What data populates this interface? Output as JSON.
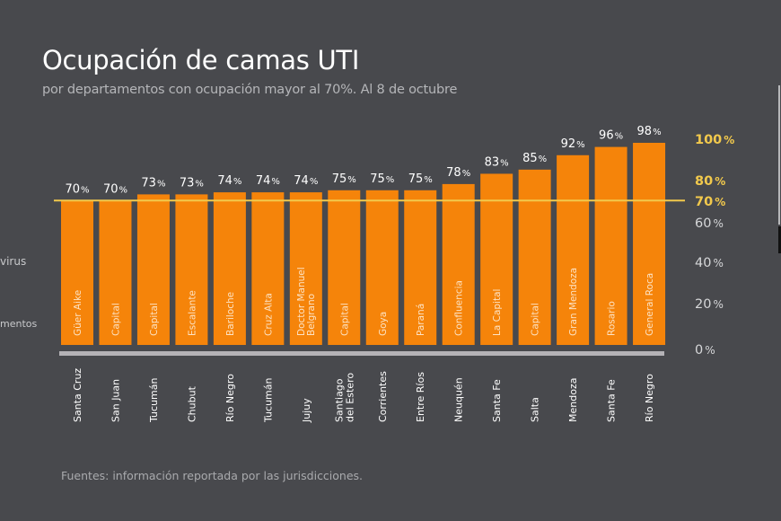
{
  "header": {
    "title": "Ocupación de camas UTI",
    "subtitle": "por departamentos con ocupación mayor al 70%. Al 8 de octubre"
  },
  "footer": {
    "source": "Fuentes: información reportada por las jurisdicciones."
  },
  "left_edge_fragments": [
    "virus",
    "mentos"
  ],
  "colors": {
    "background": "#48494d",
    "bar": "#f5840a",
    "threshold_line": "#f2c94c",
    "axis_highlight": "#f2c94c",
    "axis_normal": "#d6d7d9",
    "value_label": "#ffffff",
    "baseline": "#b4b2b6"
  },
  "chart_data": {
    "type": "bar",
    "title": "Ocupación de camas UTI",
    "subtitle": "por departamentos con ocupación mayor al 70%. Al 8 de octubre",
    "xlabel": "",
    "ylabel": "",
    "ylim": [
      0,
      100
    ],
    "grid": false,
    "legend": "none",
    "y_axis_position": "right",
    "value_suffix": "%",
    "categories": [
      {
        "department": "Güer Aike",
        "province": "Santa Cruz"
      },
      {
        "department": "Capital",
        "province": "San Juan"
      },
      {
        "department": "Capital",
        "province": "Tucumán"
      },
      {
        "department": "Escalante",
        "province": "Chubut"
      },
      {
        "department": "Bariloche",
        "province": "Río Negro"
      },
      {
        "department": "Cruz Alta",
        "province": "Tucumán"
      },
      {
        "department": "Doctor Manuel|Belgrano",
        "province": "Jujuy"
      },
      {
        "department": "Capital",
        "province": "Santiago|del Estero"
      },
      {
        "department": "Goya",
        "province": "Corrientes"
      },
      {
        "department": "Paraná",
        "province": "Entre Ríos"
      },
      {
        "department": "Confluencia",
        "province": "Neuquén"
      },
      {
        "department": "La Capital",
        "province": "Santa Fe"
      },
      {
        "department": "Capital",
        "province": "Salta"
      },
      {
        "department": "Gran Mendoza",
        "province": "Mendoza"
      },
      {
        "department": "Rosario",
        "province": "Santa Fe"
      },
      {
        "department": "General Roca",
        "province": "Río Negro"
      }
    ],
    "values": [
      70,
      70,
      73,
      73,
      74,
      74,
      74,
      75,
      75,
      75,
      78,
      83,
      85,
      92,
      96,
      98
    ],
    "y_ticks": [
      {
        "value": 0,
        "label": "0%",
        "highlight": false
      },
      {
        "value": 20,
        "label": "20%",
        "highlight": false
      },
      {
        "value": 40,
        "label": "40%",
        "highlight": false
      },
      {
        "value": 60,
        "label": "60%",
        "highlight": false
      },
      {
        "value": 70,
        "label": "70%",
        "highlight": true
      },
      {
        "value": 80,
        "label": "80%",
        "highlight": true
      },
      {
        "value": 100,
        "label": "100%",
        "highlight": true
      }
    ],
    "threshold": {
      "value": 70,
      "label": "70%"
    }
  }
}
